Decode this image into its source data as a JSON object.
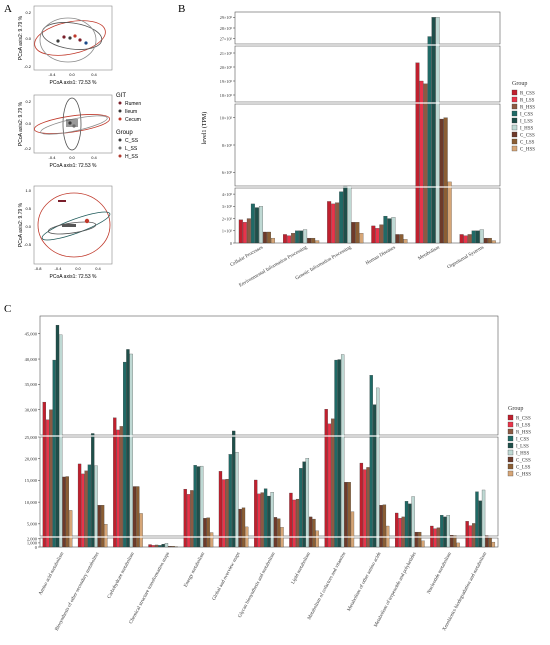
{
  "panel_labels": {
    "a": "A",
    "b": "B",
    "c": "C"
  },
  "pcoa": {
    "xlabel": "PCoA axis1:  72.53 %",
    "ylabel": "PCoA axis2:  9.79 %",
    "x_ticks": [
      "-0.4",
      "0.0",
      "0.4"
    ],
    "x_ticks_c": [
      "-0.8",
      "-0.4",
      "0.0",
      "0.4"
    ],
    "y_ticks_a": [
      "0.2",
      "0.0",
      "-0.2"
    ],
    "y_ticks_b": [
      "0.2",
      "0.0",
      "-0.2"
    ],
    "y_ticks_c": [
      "1.0",
      "0.5",
      "0.0",
      "-0.5"
    ],
    "legend_git_title": "GIT",
    "legend_git": [
      {
        "label": "Rumen",
        "color": "#7a1f2b"
      },
      {
        "label": "Ileum",
        "color": "#3b3b3b"
      },
      {
        "label": "Cecum",
        "color": "#c0392b"
      }
    ],
    "legend_group_title": "Group",
    "legend_group": [
      {
        "label": "C_SS",
        "color": "#3b3b3b"
      },
      {
        "label": "L_SS",
        "color": "#6b6b6b"
      },
      {
        "label": "H_SS",
        "color": "#b03a2e"
      }
    ]
  },
  "legend_title": "Group",
  "groups": [
    {
      "name": "R_CSS",
      "color": "#c0202e"
    },
    {
      "name": "R_LSS",
      "color": "#e8344a"
    },
    {
      "name": "R_HSS",
      "color": "#8c5a43"
    },
    {
      "name": "I_CSS",
      "color": "#206a66"
    },
    {
      "name": "I_LSS",
      "color": "#1f4f4a"
    },
    {
      "name": "I_HSS",
      "color": "#bfd9d4"
    },
    {
      "name": "C_CSS",
      "color": "#6e3a2a"
    },
    {
      "name": "C_LSS",
      "color": "#8b5e34"
    },
    {
      "name": "C_HSS",
      "color": "#d6a677"
    }
  ],
  "chart_data": [
    {
      "type": "bar",
      "ylabel": "level1 (TPM)",
      "categories": [
        "Cellular Processes",
        "Environmental Information Processing",
        "Genetic Information Processing",
        "Human Diseases",
        "Metabolism",
        "Organismal Systems"
      ],
      "y_tick_labels": [
        "0",
        "1×10⁵",
        "2×10⁵",
        "3×10⁵",
        "4×10⁵",
        "6×10⁵",
        "8×10⁵",
        "10×10⁵",
        "18×10⁵",
        "19×10⁵",
        "20×10⁵",
        "21×10⁵",
        "27×10⁵",
        "28×10⁵",
        "29×10⁵"
      ],
      "series": [
        {
          "name": "R_CSS",
          "values": [
            190000,
            70000,
            340000,
            140000,
            2030000,
            70000
          ]
        },
        {
          "name": "R_LSS",
          "values": [
            170000,
            60000,
            320000,
            120000,
            1900000,
            60000
          ]
        },
        {
          "name": "R_HSS",
          "values": [
            200000,
            80000,
            330000,
            150000,
            1880000,
            70000
          ]
        },
        {
          "name": "I_CSS",
          "values": [
            320000,
            100000,
            420000,
            220000,
            2720000,
            100000
          ]
        },
        {
          "name": "I_LSS",
          "values": [
            290000,
            100000,
            480000,
            200000,
            2900000,
            100000
          ]
        },
        {
          "name": "I_HSS",
          "values": [
            300000,
            110000,
            470000,
            210000,
            2900000,
            110000
          ]
        },
        {
          "name": "C_CSS",
          "values": [
            90000,
            40000,
            170000,
            70000,
            990000,
            40000
          ]
        },
        {
          "name": "C_LSS",
          "values": [
            90000,
            40000,
            170000,
            70000,
            1000000,
            40000
          ]
        },
        {
          "name": "C_HSS",
          "values": [
            40000,
            20000,
            80000,
            30000,
            530000,
            20000
          ]
        }
      ]
    },
    {
      "type": "bar",
      "ylabel": "",
      "categories": [
        "Amino acid metabolism",
        "Biosynthesis of other secondary metabolites",
        "Carbohydrate metabolism",
        "Chemical structure transformation maps",
        "Energy metabolism",
        "Global and overview maps",
        "Glycan biosynthesis and metabolism",
        "Lipid metabolism",
        "Metabolism of cofactors and vitamins",
        "Metabolism of other amino acids",
        "Metabolism of terpenoids and polyketides",
        "Nucleotide metabolism",
        "Xenobiotics biodegradation and metabolism"
      ],
      "y_tick_labels": [
        "0",
        "1,000",
        "2,000",
        "5,000",
        "10,000",
        "15,000",
        "20,000",
        "25,000",
        "30,000",
        "35,000",
        "40,000",
        "45,000"
      ],
      "series": [
        {
          "name": "R_CSS",
          "values": [
            31500,
            18800,
            28400,
            600,
            13000,
            17100,
            15100,
            12100,
            30100,
            19000,
            7500,
            4500,
            5600
          ]
        },
        {
          "name": "R_LSS",
          "values": [
            28000,
            16500,
            26000,
            400,
            11800,
            15200,
            11900,
            10500,
            27200,
            17500,
            6300,
            3900,
            4600
          ]
        },
        {
          "name": "R_HSS",
          "values": [
            30000,
            17200,
            26700,
            500,
            12700,
            15300,
            12200,
            10700,
            28200,
            18000,
            6600,
            4100,
            5100
          ]
        },
        {
          "name": "I_CSS",
          "values": [
            39800,
            18600,
            39400,
            400,
            18500,
            21000,
            13100,
            17800,
            39800,
            36800,
            10200,
            7000,
            12400
          ]
        },
        {
          "name": "I_LSS",
          "values": [
            46700,
            25300,
            41900,
            700,
            18200,
            25800,
            11400,
            19300,
            39900,
            31000,
            9600,
            6600,
            10300
          ]
        },
        {
          "name": "I_HSS",
          "values": [
            44800,
            18400,
            41000,
            900,
            18300,
            21500,
            12300,
            20100,
            40900,
            34300,
            11300,
            7000,
            12800
          ]
        },
        {
          "name": "C_CSS",
          "values": [
            15800,
            9300,
            13600,
            200,
            6300,
            8400,
            6500,
            6600,
            14600,
            9300,
            3100,
            2400,
            2300
          ]
        },
        {
          "name": "C_LSS",
          "values": [
            15900,
            9300,
            13600,
            200,
            6400,
            8700,
            6200,
            6100,
            14600,
            9400,
            3100,
            2300,
            2200
          ]
        },
        {
          "name": "C_HSS",
          "values": [
            8100,
            4900,
            7400,
            100,
            3000,
            4300,
            4200,
            3400,
            7800,
            4500,
            1500,
            1000,
            1200
          ]
        }
      ]
    }
  ]
}
